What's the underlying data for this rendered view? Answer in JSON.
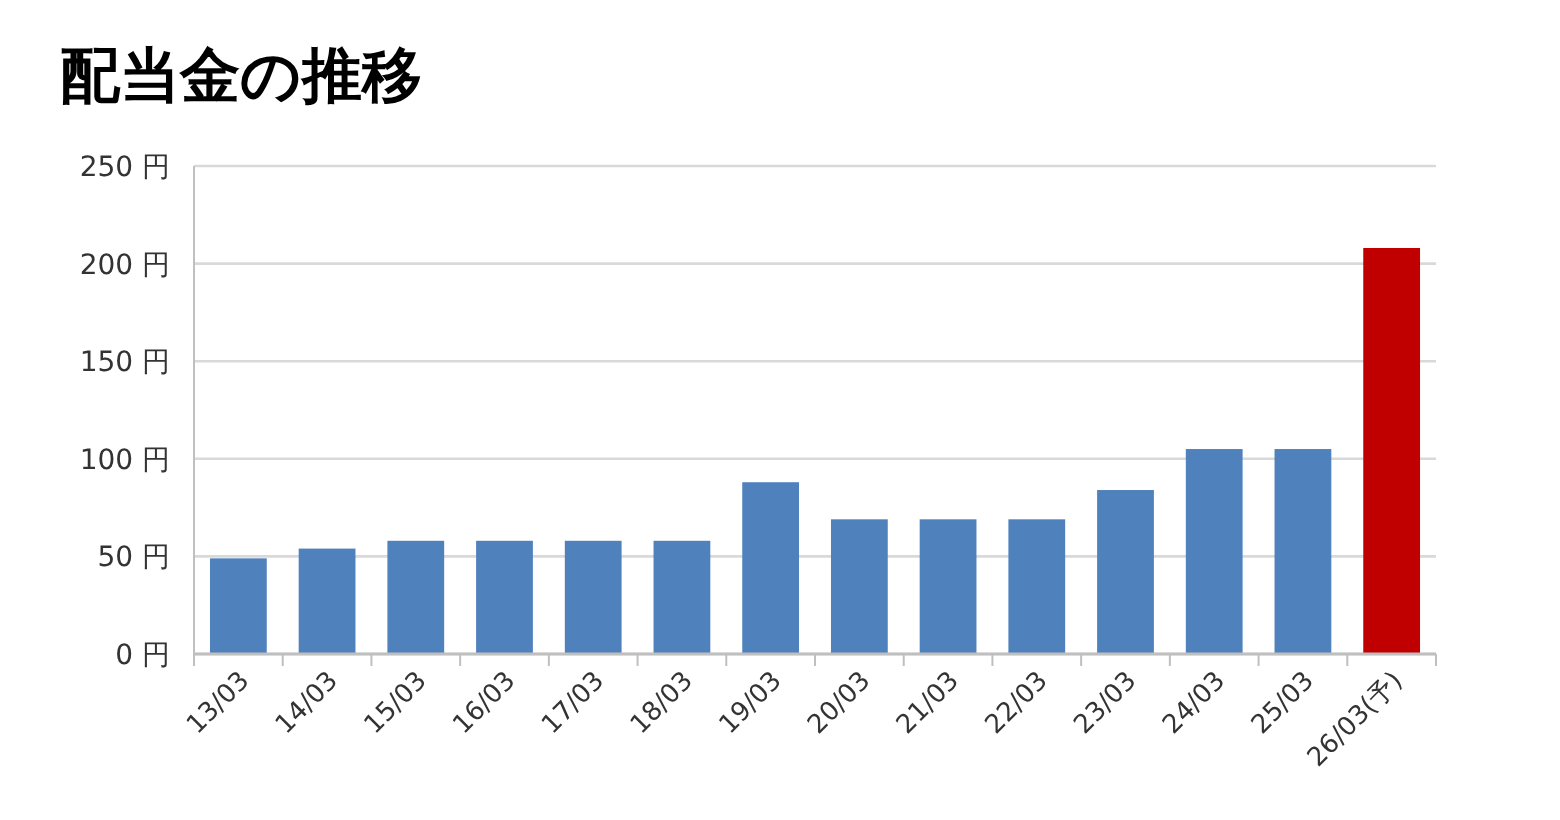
{
  "chart_data": {
    "type": "bar",
    "title": "配当金の推移",
    "categories": [
      "13/03",
      "14/03",
      "15/03",
      "16/03",
      "17/03",
      "18/03",
      "19/03",
      "20/03",
      "21/03",
      "22/03",
      "23/03",
      "24/03",
      "25/03",
      "26/03(予)"
    ],
    "values": [
      49,
      54,
      58,
      58,
      58,
      58,
      88,
      69,
      69,
      69,
      84,
      105,
      105,
      208
    ],
    "colors": [
      "#4f81bd",
      "#4f81bd",
      "#4f81bd",
      "#4f81bd",
      "#4f81bd",
      "#4f81bd",
      "#4f81bd",
      "#4f81bd",
      "#4f81bd",
      "#4f81bd",
      "#4f81bd",
      "#4f81bd",
      "#4f81bd",
      "#c00000"
    ],
    "ylim": [
      0,
      250
    ],
    "yticks": [
      {
        "value": 0,
        "label": "0 円"
      },
      {
        "value": 50,
        "label": "50 円"
      },
      {
        "value": 100,
        "label": "100 円"
      },
      {
        "value": 150,
        "label": "150 円"
      },
      {
        "value": 200,
        "label": "200 円"
      },
      {
        "value": 250,
        "label": "250 円"
      }
    ],
    "grid": "y"
  }
}
